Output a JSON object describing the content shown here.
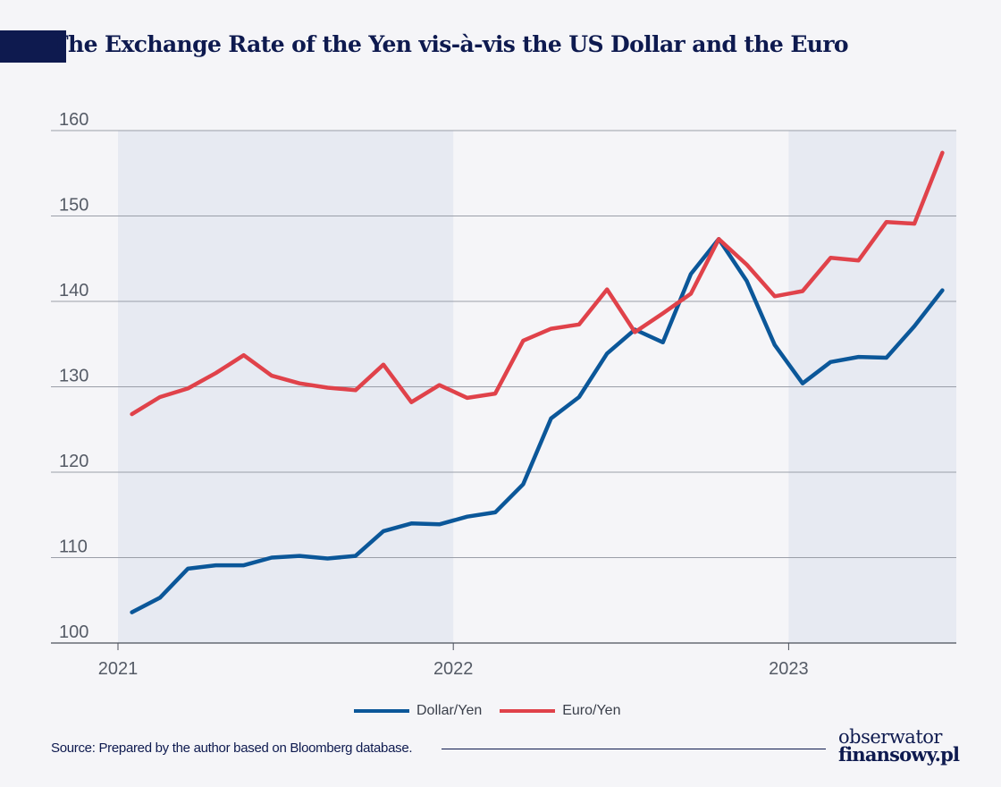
{
  "header": {
    "title_initial": "T",
    "title_rest": "he Exchange Rate of the Yen vis-à-vis the US Dollar and the Euro"
  },
  "chart_data": {
    "type": "line",
    "title": "The Exchange Rate of the Yen vis-à-vis the US Dollar and the Euro",
    "ylim": [
      100,
      160
    ],
    "yticks": [
      100,
      110,
      120,
      130,
      140,
      150,
      160
    ],
    "xlim": [
      0,
      30
    ],
    "xticks": [
      {
        "label": "2021",
        "value": 0
      },
      {
        "label": "2022",
        "value": 12
      },
      {
        "label": "2023",
        "value": 24
      }
    ],
    "shaded_periods": [
      [
        0,
        12
      ],
      [
        24,
        30
      ]
    ],
    "grid": "horizontal",
    "legend_position": "bottom-center",
    "x": [
      0.5,
      1.5,
      2.5,
      3.5,
      4.5,
      5.5,
      6.5,
      7.5,
      8.5,
      9.5,
      10.5,
      11.5,
      12.5,
      13.5,
      14.5,
      15.5,
      16.5,
      17.5,
      18.5,
      19.5,
      20.5,
      21.5,
      22.5,
      23.5,
      24.5,
      25.5,
      26.5,
      27.5,
      28.5,
      29.5
    ],
    "series": [
      {
        "name": "Dollar/Yen",
        "color": "#0b5799",
        "values": [
          103.6,
          105.3,
          108.7,
          109.1,
          109.1,
          110.0,
          110.2,
          109.9,
          110.2,
          113.1,
          114.0,
          113.9,
          114.8,
          115.3,
          118.6,
          126.3,
          128.8,
          133.9,
          136.7,
          135.2,
          143.2,
          147.3,
          142.4,
          134.9,
          130.4,
          132.9,
          133.5,
          133.4,
          137.1,
          141.3
        ]
      },
      {
        "name": "Euro/Yen",
        "color": "#e0424a",
        "values": [
          126.8,
          128.8,
          129.8,
          131.6,
          133.7,
          131.3,
          130.4,
          129.9,
          129.6,
          132.6,
          128.2,
          130.2,
          128.7,
          129.2,
          135.4,
          136.8,
          137.3,
          141.4,
          136.4,
          138.6,
          140.9,
          147.3,
          144.3,
          140.6,
          141.2,
          145.1,
          144.8,
          149.3,
          149.1,
          157.4
        ]
      }
    ]
  },
  "legend": {
    "items": [
      {
        "label": "Dollar/Yen",
        "color": "#0b5799"
      },
      {
        "label": "Euro/Yen",
        "color": "#e0424a"
      }
    ]
  },
  "footer": {
    "source": "Source: Prepared by the author based on Bloomberg database.",
    "logo_top": "obserwator",
    "logo_bottom": "finansowy.pl"
  }
}
